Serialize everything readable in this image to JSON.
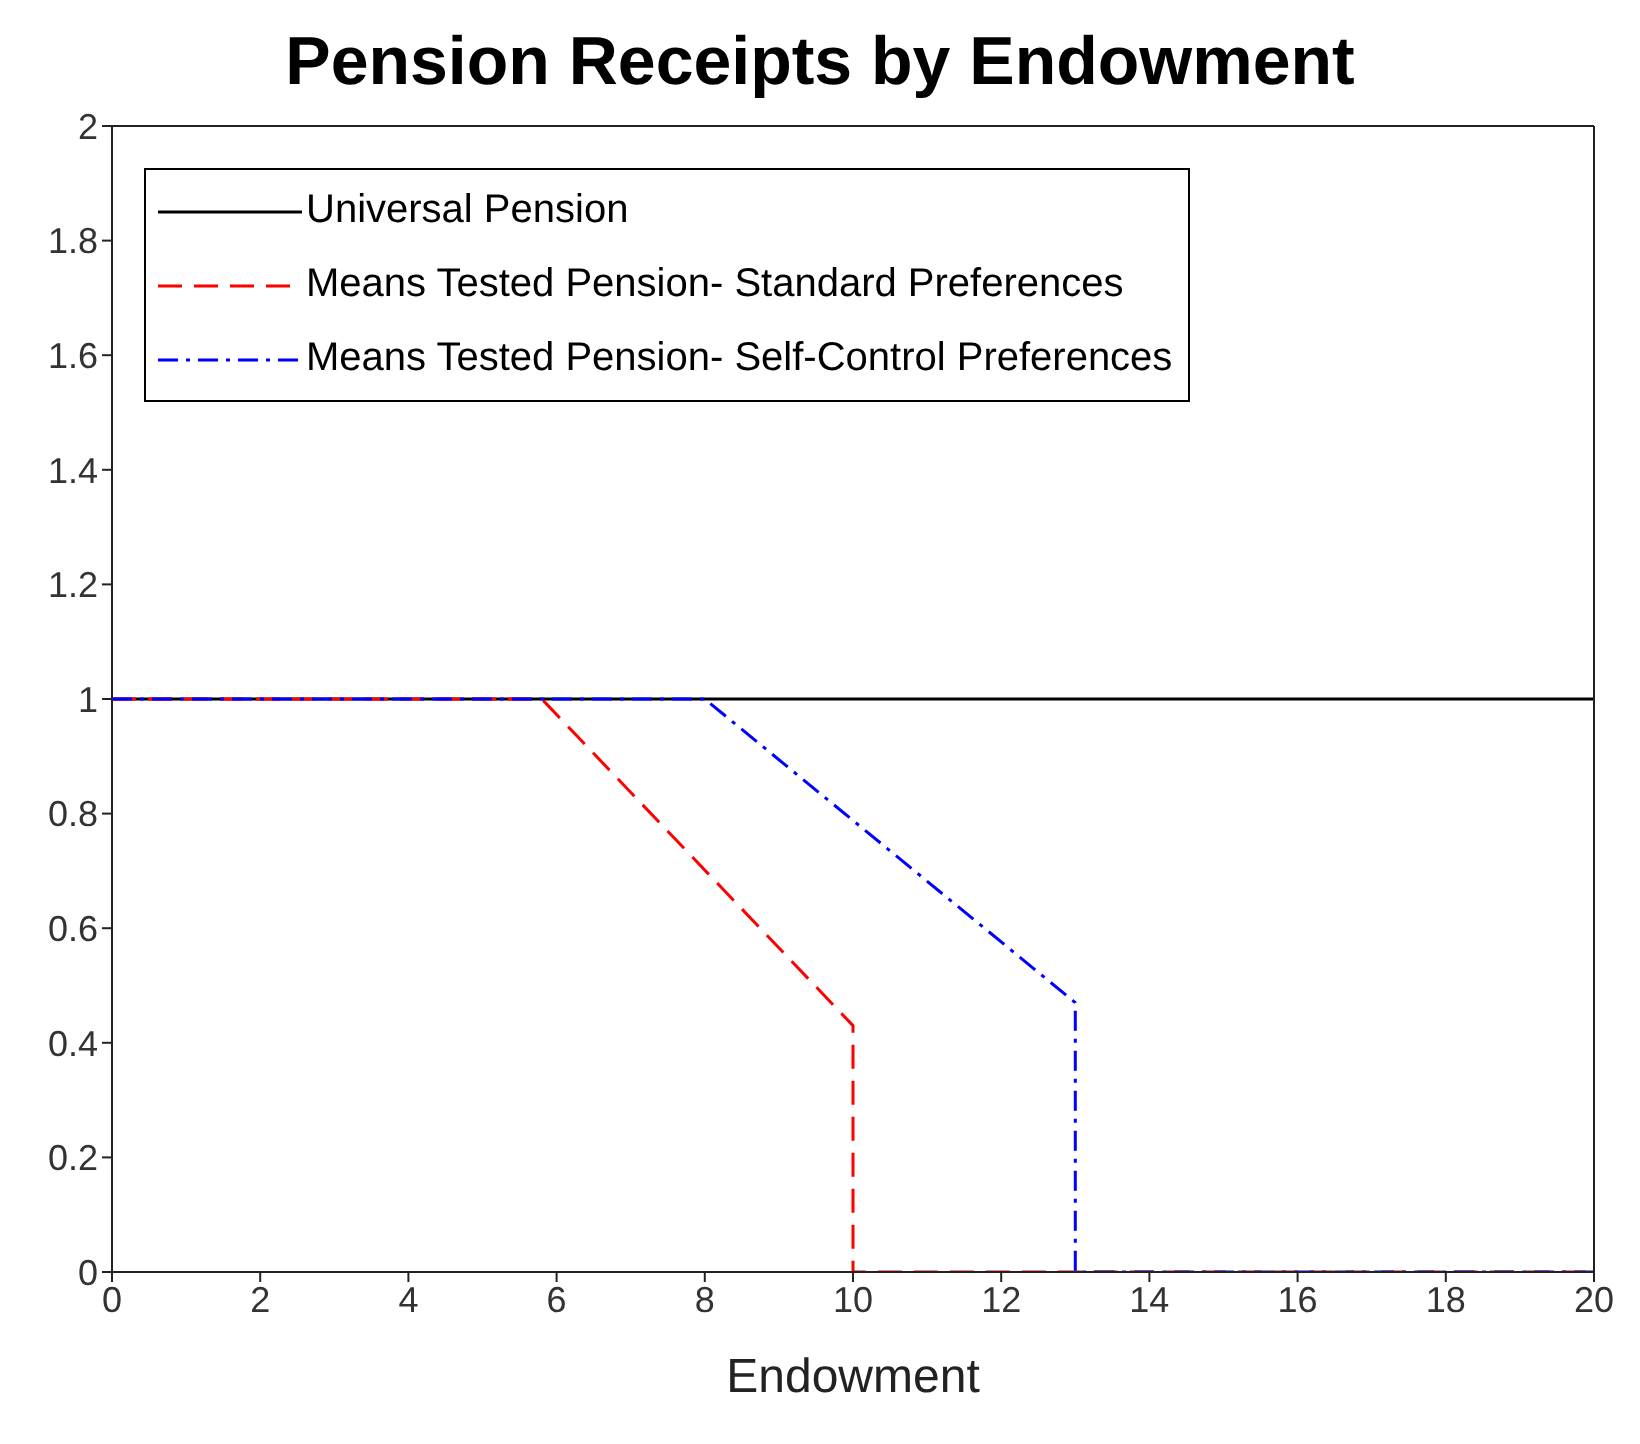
{
  "chart_data": {
    "type": "line",
    "title": "Pension Receipts by Endowment",
    "xlabel": "Endowment",
    "xlim": [
      0,
      20
    ],
    "xticks": [
      0,
      2,
      4,
      6,
      8,
      10,
      12,
      14,
      16,
      18,
      20
    ],
    "ylim": [
      0,
      2
    ],
    "yticks": [
      0,
      0.2,
      0.4,
      0.6,
      0.8,
      1,
      1.2,
      1.4,
      1.6,
      1.8,
      2
    ],
    "grid": false,
    "legend": "top left",
    "marker": "none",
    "series": [
      {
        "name": "Universal Pension",
        "color": "#000000",
        "line_style": "solid",
        "x": [
          0,
          20
        ],
        "values": [
          1,
          1
        ]
      },
      {
        "name": "Means Tested Pension- Standard Preferences",
        "color": "#ff0000",
        "line_style": "dashed",
        "x": [
          0,
          5.8,
          10,
          10,
          20
        ],
        "values": [
          1,
          1,
          0.43,
          0,
          0
        ]
      },
      {
        "name": "Means Tested Pension- Self-Control Preferences",
        "color": "#0000ff",
        "line_style": "dashdot",
        "x": [
          0,
          8,
          13,
          13,
          20
        ],
        "values": [
          1,
          1,
          0.47,
          0,
          0
        ]
      }
    ]
  }
}
